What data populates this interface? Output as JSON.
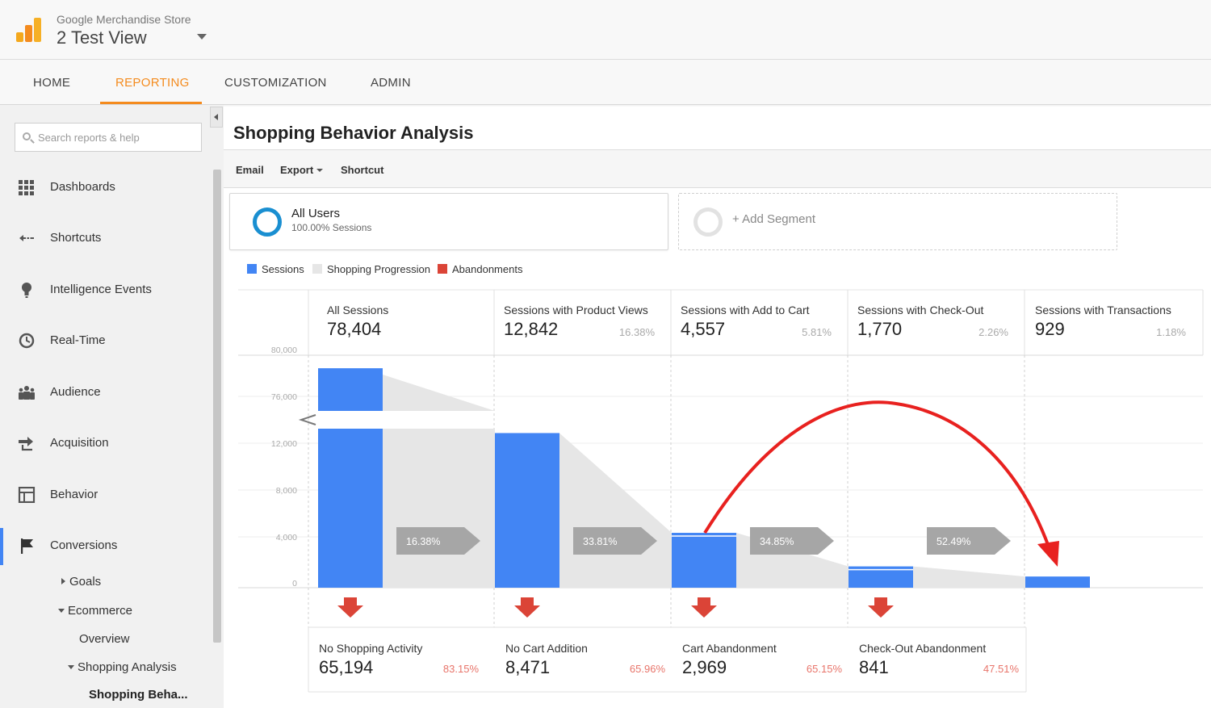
{
  "header": {
    "account": "Google Merchandise Store",
    "view": "2 Test View"
  },
  "tabs": [
    {
      "label": "HOME",
      "active": false
    },
    {
      "label": "REPORTING",
      "active": true
    },
    {
      "label": "CUSTOMIZATION",
      "active": false
    },
    {
      "label": "ADMIN",
      "active": false
    }
  ],
  "sidebar": {
    "search_placeholder": "Search reports & help",
    "items": [
      {
        "label": "Dashboards",
        "icon": "dashboards-icon"
      },
      {
        "label": "Shortcuts",
        "icon": "shortcuts-icon"
      },
      {
        "label": "Intelligence Events",
        "icon": "lightbulb-icon"
      },
      {
        "label": "Real-Time",
        "icon": "clock-icon"
      },
      {
        "label": "Audience",
        "icon": "people-icon"
      },
      {
        "label": "Acquisition",
        "icon": "acquisition-icon"
      },
      {
        "label": "Behavior",
        "icon": "behavior-icon"
      },
      {
        "label": "Conversions",
        "icon": "flag-icon"
      }
    ],
    "sub": {
      "goals": "Goals",
      "ecommerce": "Ecommerce",
      "overview": "Overview",
      "shopping_analysis": "Shopping Analysis",
      "shopping_behavior": "Shopping Beha..."
    }
  },
  "main": {
    "title": "Shopping Behavior Analysis",
    "toolbar": {
      "email": "Email",
      "export": "Export",
      "shortcut": "Shortcut"
    },
    "segment": {
      "name": "All Users",
      "sub": "100.00% Sessions"
    },
    "add_segment": "+ Add Segment"
  },
  "legend": [
    {
      "label": "Sessions",
      "color": "#4285f4"
    },
    {
      "label": "Shopping Progression",
      "color": "#e6e6e6"
    },
    {
      "label": "Abandonments",
      "color": "#db4437"
    }
  ],
  "stages": [
    {
      "label": "All Sessions",
      "value": "78,404",
      "pct": ""
    },
    {
      "label": "Sessions with Product Views",
      "value": "12,842",
      "pct": "16.38%"
    },
    {
      "label": "Sessions with Add to Cart",
      "value": "4,557",
      "pct": "5.81%"
    },
    {
      "label": "Sessions with Check-Out",
      "value": "1,770",
      "pct": "2.26%"
    },
    {
      "label": "Sessions with Transactions",
      "value": "929",
      "pct": "1.18%"
    }
  ],
  "abandonments": [
    {
      "label": "No Shopping Activity",
      "value": "65,194",
      "pct": "83.15%"
    },
    {
      "label": "No Cart Addition",
      "value": "8,471",
      "pct": "65.96%"
    },
    {
      "label": "Cart Abandonment",
      "value": "2,969",
      "pct": "65.15%"
    },
    {
      "label": "Check-Out Abandonment",
      "value": "841",
      "pct": "47.51%"
    }
  ],
  "chart_data": {
    "type": "bar",
    "categories": [
      "All Sessions",
      "Sessions with Product Views",
      "Sessions with Add to Cart",
      "Sessions with Check-Out",
      "Sessions with Transactions"
    ],
    "values": [
      78404,
      12842,
      4557,
      1770,
      929
    ],
    "y_ticks": [
      "80,000",
      "76,000",
      "12,000",
      "8,000",
      "4,000",
      "0"
    ],
    "y_break": {
      "lower_max": 12000,
      "upper_min": 76000,
      "upper_max": 80000
    },
    "conversion_rates": [
      "16.38%",
      "33.81%",
      "34.85%",
      "52.49%"
    ],
    "colors": {
      "sessions": "#4285f4",
      "progression": "#e6e6e6",
      "abandonments": "#db4437",
      "arrow": "#a6a6a6",
      "annotation": "#e8211f"
    }
  }
}
